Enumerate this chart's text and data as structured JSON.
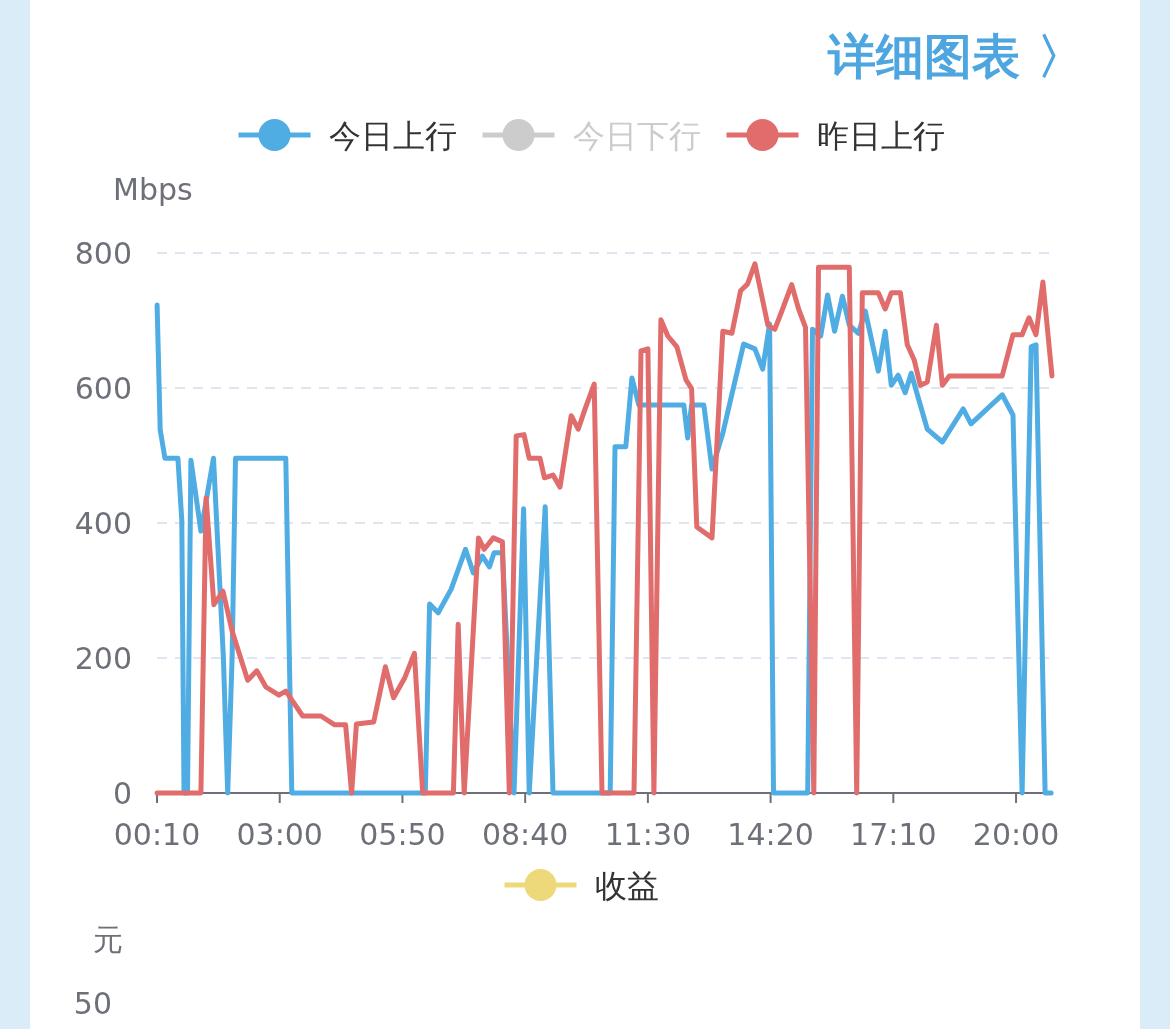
{
  "chart_data": [
    {
      "type": "line",
      "ylabel": "Mbps",
      "legend": "top",
      "grid": "y",
      "line_style": "solid",
      "annotations": [
        "详细图表 〉"
      ],
      "xlim": [
        0.1667,
        20.83
      ],
      "ylim": [
        0,
        800
      ],
      "yticks": [
        0,
        200,
        400,
        600,
        800
      ],
      "xticks": [
        {
          "value": 0.1667,
          "label": "00:10"
        },
        {
          "value": 3,
          "label": "03:00"
        },
        {
          "value": 5.8333,
          "label": "05:50"
        },
        {
          "value": 8.6667,
          "label": "08:40"
        },
        {
          "value": 11.5,
          "label": "11:30"
        },
        {
          "value": 14.3333,
          "label": "14:20"
        },
        {
          "value": 17.1667,
          "label": "17:10"
        },
        {
          "value": 20,
          "label": "20:00"
        }
      ],
      "series": [
        {
          "name": "今日上行",
          "color": "#4fade3",
          "x": [
            0.17,
            0.24,
            0.35,
            0.65,
            0.74,
            0.79,
            0.87,
            0.95,
            1.18,
            1.47,
            1.7,
            1.8,
            1.9,
            1.98,
            3.14,
            3.28,
            6.36,
            6.46,
            6.66,
            6.96,
            7.29,
            7.47,
            7.68,
            7.84,
            7.95,
            8.14,
            8.41,
            8.63,
            8.76,
            9.13,
            9.31,
            10.63,
            10.74,
            10.99,
            11.13,
            11.29,
            12.33,
            12.42,
            12.51,
            12.79,
            12.98,
            13.23,
            13.71,
            13.97,
            14.15,
            14.31,
            14.4,
            15.19,
            15.3,
            15.49,
            15.65,
            15.81,
            15.99,
            16.15,
            16.36,
            16.52,
            16.82,
            16.98,
            17.12,
            17.28,
            17.44,
            17.58,
            17.95,
            18.3,
            18.78,
            18.96,
            19.43,
            19.68,
            19.93,
            20.14,
            20.35,
            20.46,
            20.67,
            20.81
          ],
          "values": [
            723,
            538,
            496,
            496,
            404,
            0,
            0,
            493,
            388,
            496,
            200,
            0,
            200,
            496,
            496,
            0,
            0,
            280,
            267,
            302,
            361,
            326,
            351,
            335,
            356,
            356,
            0,
            421,
            0,
            424,
            0,
            0,
            513,
            513,
            615,
            575,
            575,
            526,
            575,
            575,
            480,
            533,
            665,
            658,
            628,
            695,
            0,
            0,
            687,
            677,
            738,
            684,
            736,
            693,
            681,
            714,
            625,
            684,
            604,
            619,
            593,
            622,
            539,
            520,
            569,
            547,
            575,
            590,
            560,
            0,
            661,
            664,
            0,
            0
          ]
        },
        {
          "name": "今日下行",
          "color": "#cccccc"
        },
        {
          "name": "昨日上行",
          "color": "#e06c6c",
          "x": [
            0.17,
            1.18,
            1.3,
            1.48,
            1.69,
            1.9,
            2.26,
            2.47,
            2.68,
            2.98,
            3.14,
            3.53,
            3.95,
            4.27,
            4.52,
            4.66,
            4.77,
            5.17,
            5.44,
            5.63,
            5.88,
            6.11,
            6.3,
            7.01,
            7.12,
            7.26,
            7.59,
            7.72,
            7.93,
            8.14,
            8.3,
            8.46,
            8.64,
            8.76,
            9.01,
            9.11,
            9.31,
            9.47,
            9.73,
            9.89,
            10.05,
            10.26,
            10.44,
            11.18,
            11.34,
            11.5,
            11.64,
            11.8,
            11.96,
            12.17,
            12.38,
            12.51,
            12.63,
            12.98,
            13.23,
            13.44,
            13.64,
            13.8,
            13.97,
            14.27,
            14.43,
            14.61,
            14.82,
            14.98,
            15.14,
            15.33,
            15.44,
            16.15,
            16.32,
            16.45,
            16.82,
            16.98,
            17.12,
            17.33,
            17.49,
            17.65,
            17.79,
            17.95,
            18.16,
            18.3,
            18.46,
            19.68,
            19.93,
            20.14,
            20.3,
            20.46,
            20.62,
            20.83
          ],
          "values": [
            0,
            0,
            437,
            279,
            299,
            240,
            167,
            181,
            157,
            145,
            151,
            114,
            114,
            101,
            101,
            0,
            102,
            105,
            187,
            141,
            170,
            207,
            0,
            0,
            250,
            0,
            378,
            361,
            378,
            372,
            0,
            529,
            531,
            496,
            496,
            467,
            471,
            453,
            559,
            539,
            569,
            606,
            0,
            0,
            655,
            658,
            0,
            701,
            677,
            661,
            612,
            599,
            394,
            378,
            684,
            681,
            744,
            754,
            784,
            693,
            687,
            717,
            753,
            717,
            690,
            0,
            779,
            779,
            0,
            741,
            741,
            717,
            741,
            741,
            664,
            641,
            604,
            609,
            693,
            604,
            618,
            618,
            679,
            679,
            704,
            679,
            757,
            618
          ]
        }
      ]
    },
    {
      "type": "other",
      "ylabel": "元",
      "legend": "top",
      "annotations": [
        "50"
      ],
      "series": [
        {
          "name": "收益",
          "color": "#eed97a"
        }
      ]
    }
  ]
}
